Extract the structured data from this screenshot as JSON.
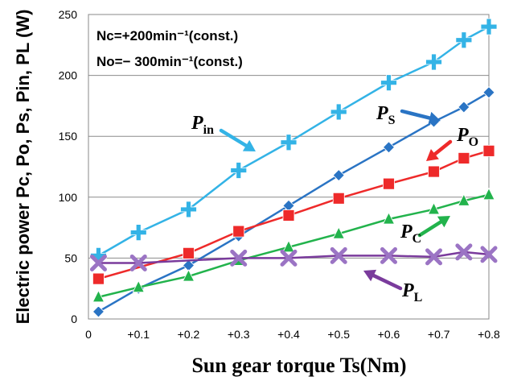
{
  "chart_data": {
    "type": "line",
    "xlabel": "Sun gear torque Ts(Nm)",
    "ylabel": "Electric power Pc, Po, Ps, Pin, PL (W)",
    "xlim": [
      0,
      0.8
    ],
    "ylim": [
      0,
      250
    ],
    "x_ticks": [
      0,
      0.1,
      0.2,
      0.3,
      0.4,
      0.5,
      0.6,
      0.7,
      0.8
    ],
    "x_tick_labels": [
      "0",
      "+0.1",
      "+0.2",
      "+0.3",
      "+0.4",
      "+0.5",
      "+0.6",
      "+0.7",
      "+0.8"
    ],
    "y_ticks": [
      0,
      50,
      100,
      150,
      200,
      250
    ],
    "y_tick_labels": [
      "0",
      "50",
      "100",
      "150",
      "200",
      "250"
    ],
    "annotations": [
      "Nc=+200min⁻¹(const.)",
      "No=− 300min⁻¹(const.)"
    ],
    "series": [
      {
        "name": "Pin",
        "main": "P",
        "sub": "in",
        "color": "#33b3e6",
        "marker": "plus",
        "x": [
          0.02,
          0.1,
          0.2,
          0.3,
          0.4,
          0.5,
          0.6,
          0.69,
          0.75,
          0.8
        ],
        "y": [
          52,
          71,
          90,
          122,
          145,
          170,
          194,
          211,
          229,
          240
        ]
      },
      {
        "name": "Ps",
        "main": "P",
        "sub": "S",
        "color": "#2a74c4",
        "marker": "diamond",
        "x": [
          0.02,
          0.1,
          0.2,
          0.3,
          0.4,
          0.5,
          0.6,
          0.69,
          0.75,
          0.8
        ],
        "y": [
          6,
          25,
          44,
          68,
          93,
          118,
          141,
          162,
          174,
          186
        ]
      },
      {
        "name": "Po",
        "main": "P",
        "sub": "O",
        "color": "#ee2a2a",
        "marker": "square",
        "x": [
          0.02,
          0.2,
          0.3,
          0.4,
          0.5,
          0.6,
          0.69,
          0.75,
          0.8
        ],
        "y": [
          33,
          54,
          72,
          85,
          99,
          111,
          121,
          132,
          138
        ]
      },
      {
        "name": "Pc",
        "main": "P",
        "sub": "C",
        "color": "#22b34c",
        "marker": "triangle",
        "x": [
          0.02,
          0.1,
          0.2,
          0.3,
          0.4,
          0.5,
          0.6,
          0.69,
          0.75,
          0.8
        ],
        "y": [
          18,
          26,
          35,
          48,
          59,
          70,
          82,
          90,
          97,
          102
        ]
      },
      {
        "name": "PL",
        "main": "P",
        "sub": "L",
        "color": "#7a3b9c",
        "marker": "x",
        "x": [
          0.02,
          0.1,
          0.3,
          0.4,
          0.5,
          0.6,
          0.69,
          0.75,
          0.8
        ],
        "y": [
          46,
          46,
          50,
          50,
          52,
          52,
          51,
          55,
          53
        ]
      }
    ],
    "series_labels": [
      {
        "series": "Pin",
        "main": "P",
        "sub": "in",
        "color": "#33b3e6"
      },
      {
        "series": "Ps",
        "main": "P",
        "sub": "S",
        "color": "#2a74c4"
      },
      {
        "series": "Po",
        "main": "P",
        "sub": "O",
        "color": "#ee2a2a"
      },
      {
        "series": "Pc",
        "main": "P",
        "sub": "C",
        "color": "#22b34c"
      },
      {
        "series": "PL",
        "main": "P",
        "sub": "L",
        "color": "#7a3b9c"
      }
    ]
  }
}
